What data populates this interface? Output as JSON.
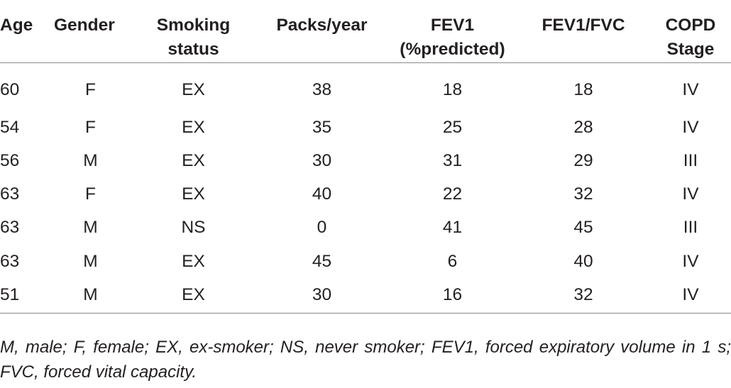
{
  "table": {
    "headers": [
      [
        "Age"
      ],
      [
        "Gender"
      ],
      [
        "Smoking",
        "status"
      ],
      [
        "Packs/year"
      ],
      [
        "FEV1",
        "(%predicted)"
      ],
      [
        "FEV1/FVC"
      ],
      [
        "COPD",
        "Stage"
      ]
    ],
    "rows": [
      [
        "60",
        "F",
        "EX",
        "38",
        "18",
        "18",
        "IV"
      ],
      [
        "54",
        "F",
        "EX",
        "35",
        "25",
        "28",
        "IV"
      ],
      [
        "56",
        "M",
        "EX",
        "30",
        "31",
        "29",
        "III"
      ],
      [
        "63",
        "F",
        "EX",
        "40",
        "22",
        "32",
        "IV"
      ],
      [
        "63",
        "M",
        "NS",
        "0",
        "41",
        "45",
        "III"
      ],
      [
        "63",
        "M",
        "EX",
        "45",
        "6",
        "40",
        "IV"
      ],
      [
        "51",
        "M",
        "EX",
        "30",
        "16",
        "32",
        "IV"
      ]
    ]
  },
  "footnote": "M, male; F, female; EX, ex-smoker; NS, never smoker; FEV1, forced expiratory volume in 1 s; FVC, forced vital capacity."
}
